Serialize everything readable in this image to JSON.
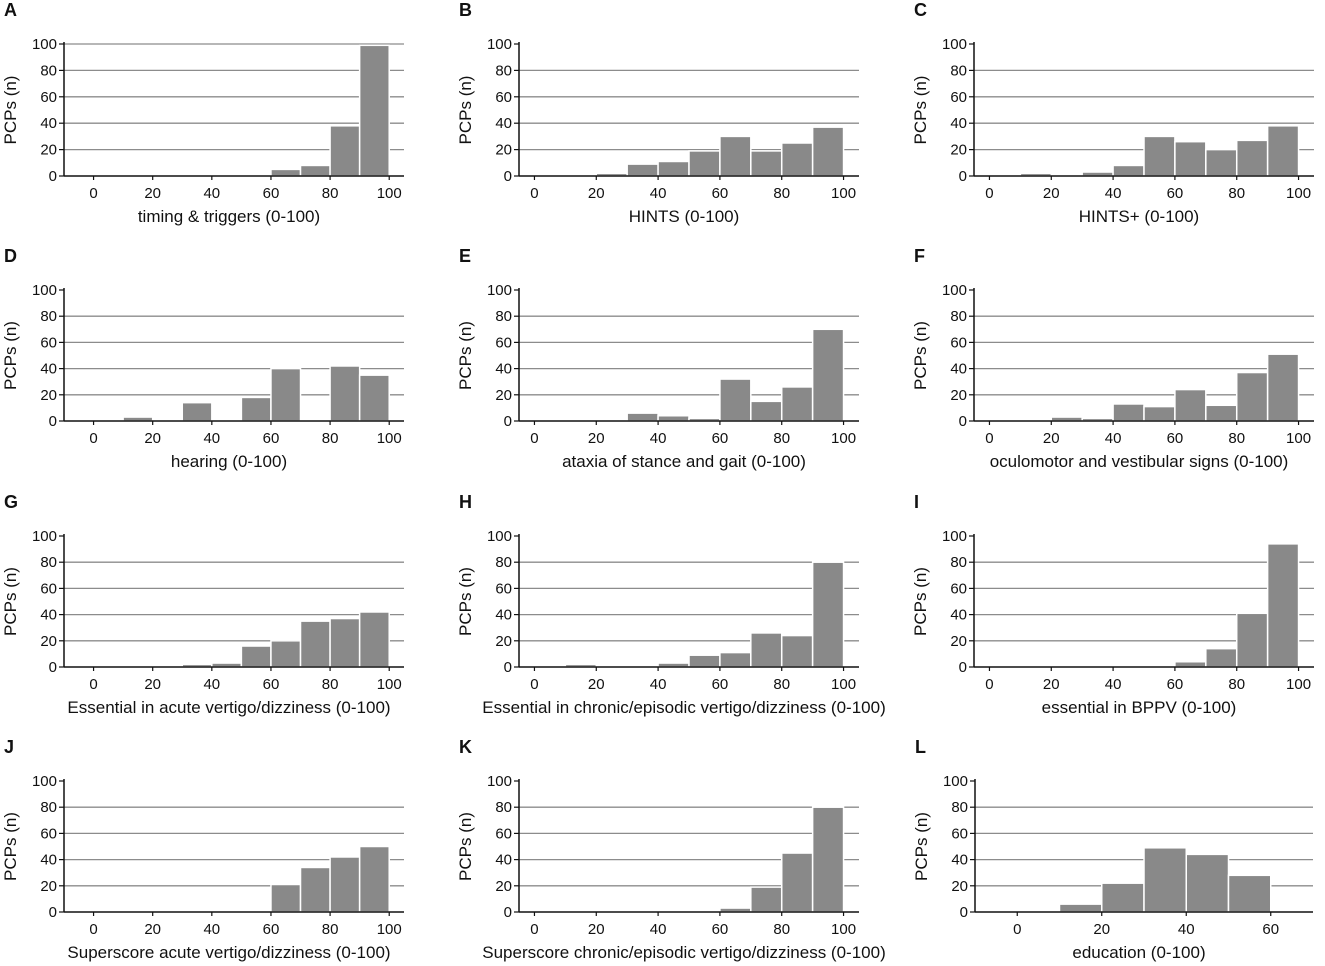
{
  "colors": {
    "bar": "#898989",
    "bar_edge": "#ffffff",
    "grid": "#8c8c8c",
    "axis": "#111111",
    "text": "#111111"
  },
  "chart_data": [
    {
      "panel": "A",
      "type": "bar",
      "xlabel": "timing & triggers (0-100)",
      "ylabel": "PCPs (n)",
      "xlim": [
        -10,
        105
      ],
      "ylim": [
        0,
        100
      ],
      "xticks": [
        0,
        20,
        40,
        60,
        80,
        100
      ],
      "yticks": [
        0,
        20,
        40,
        60,
        80,
        100
      ],
      "grid_y": [
        20,
        40,
        60,
        80,
        100
      ],
      "bins": [
        [
          0,
          10
        ],
        [
          10,
          20
        ],
        [
          20,
          30
        ],
        [
          30,
          40
        ],
        [
          40,
          50
        ],
        [
          50,
          60
        ],
        [
          60,
          70
        ],
        [
          70,
          80
        ],
        [
          80,
          90
        ],
        [
          90,
          100
        ]
      ],
      "values": [
        0,
        0,
        0,
        0,
        0,
        0,
        5,
        8,
        38,
        99
      ]
    },
    {
      "panel": "B",
      "type": "bar",
      "xlabel": "HINTS (0-100)",
      "ylabel": "PCPs (n)",
      "xlim": [
        -5,
        105
      ],
      "ylim": [
        0,
        100
      ],
      "xticks": [
        0,
        20,
        40,
        60,
        80,
        100
      ],
      "yticks": [
        0,
        20,
        40,
        60,
        80,
        100
      ],
      "grid_y": [
        20,
        40,
        60,
        80
      ],
      "bins": [
        [
          0,
          10
        ],
        [
          10,
          20
        ],
        [
          20,
          30
        ],
        [
          30,
          40
        ],
        [
          40,
          50
        ],
        [
          50,
          60
        ],
        [
          60,
          70
        ],
        [
          70,
          80
        ],
        [
          80,
          90
        ],
        [
          90,
          100
        ]
      ],
      "values": [
        1,
        1,
        2,
        9,
        11,
        19,
        30,
        19,
        25,
        37
      ]
    },
    {
      "panel": "C",
      "type": "bar",
      "xlabel": "HINTS+ (0-100)",
      "ylabel": "PCPs (n)",
      "xlim": [
        -5,
        105
      ],
      "ylim": [
        0,
        100
      ],
      "xticks": [
        0,
        20,
        40,
        60,
        80,
        100
      ],
      "yticks": [
        0,
        20,
        40,
        60,
        80,
        100
      ],
      "grid_y": [
        20,
        40,
        60,
        80
      ],
      "bins": [
        [
          0,
          10
        ],
        [
          10,
          20
        ],
        [
          20,
          30
        ],
        [
          30,
          40
        ],
        [
          40,
          50
        ],
        [
          50,
          60
        ],
        [
          60,
          70
        ],
        [
          70,
          80
        ],
        [
          80,
          90
        ],
        [
          90,
          100
        ]
      ],
      "values": [
        0,
        2,
        0,
        3,
        8,
        30,
        26,
        20,
        27,
        38
      ]
    },
    {
      "panel": "D",
      "type": "bar",
      "xlabel": "hearing (0-100)",
      "ylabel": "PCPs (n)",
      "xlim": [
        -10,
        105
      ],
      "ylim": [
        0,
        100
      ],
      "xticks": [
        0,
        20,
        40,
        60,
        80,
        100
      ],
      "yticks": [
        0,
        20,
        40,
        60,
        80,
        100
      ],
      "grid_y": [
        20,
        40,
        60,
        80
      ],
      "bins": [
        [
          0,
          10
        ],
        [
          10,
          20
        ],
        [
          20,
          30
        ],
        [
          30,
          40
        ],
        [
          40,
          50
        ],
        [
          50,
          60
        ],
        [
          60,
          70
        ],
        [
          70,
          80
        ],
        [
          80,
          90
        ],
        [
          90,
          100
        ]
      ],
      "values": [
        1,
        3,
        0,
        14,
        0,
        18,
        40,
        0,
        42,
        35
      ]
    },
    {
      "panel": "E",
      "type": "bar",
      "xlabel": "ataxia of stance and gait (0-100)",
      "ylabel": "PCPs (n)",
      "xlim": [
        -5,
        105
      ],
      "ylim": [
        0,
        100
      ],
      "xticks": [
        0,
        20,
        40,
        60,
        80,
        100
      ],
      "yticks": [
        0,
        20,
        40,
        60,
        80,
        100
      ],
      "grid_y": [
        20,
        40,
        60,
        80
      ],
      "bins": [
        [
          0,
          10
        ],
        [
          10,
          20
        ],
        [
          20,
          30
        ],
        [
          30,
          40
        ],
        [
          40,
          50
        ],
        [
          50,
          60
        ],
        [
          60,
          70
        ],
        [
          70,
          80
        ],
        [
          80,
          90
        ],
        [
          90,
          100
        ]
      ],
      "values": [
        0,
        0,
        0,
        6,
        4,
        2,
        32,
        15,
        26,
        70
      ]
    },
    {
      "panel": "F",
      "type": "bar",
      "xlabel": "oculomotor and vestibular signs (0-100)",
      "ylabel": "PCPs (n)",
      "xlim": [
        -5,
        105
      ],
      "ylim": [
        0,
        100
      ],
      "xticks": [
        0,
        20,
        40,
        60,
        80,
        100
      ],
      "yticks": [
        0,
        20,
        40,
        60,
        80,
        100
      ],
      "grid_y": [
        20,
        40,
        60,
        80
      ],
      "bins": [
        [
          0,
          10
        ],
        [
          10,
          20
        ],
        [
          20,
          30
        ],
        [
          30,
          40
        ],
        [
          40,
          50
        ],
        [
          50,
          60
        ],
        [
          60,
          70
        ],
        [
          70,
          80
        ],
        [
          80,
          90
        ],
        [
          90,
          100
        ]
      ],
      "values": [
        1,
        0,
        3,
        2,
        13,
        11,
        24,
        12,
        37,
        51
      ]
    },
    {
      "panel": "G",
      "type": "bar",
      "xlabel": "Essential in acute vertigo/dizziness (0-100)",
      "ylabel": "PCPs (n)",
      "xlim": [
        -10,
        105
      ],
      "ylim": [
        0,
        100
      ],
      "xticks": [
        0,
        20,
        40,
        60,
        80,
        100
      ],
      "yticks": [
        0,
        20,
        40,
        60,
        80,
        100
      ],
      "grid_y": [
        20,
        40,
        60,
        80
      ],
      "bins": [
        [
          0,
          10
        ],
        [
          10,
          20
        ],
        [
          20,
          30
        ],
        [
          30,
          40
        ],
        [
          40,
          50
        ],
        [
          50,
          60
        ],
        [
          60,
          70
        ],
        [
          70,
          80
        ],
        [
          80,
          90
        ],
        [
          90,
          100
        ]
      ],
      "values": [
        0,
        1,
        0,
        2,
        3,
        16,
        20,
        35,
        37,
        42
      ]
    },
    {
      "panel": "H",
      "type": "bar",
      "xlabel": "Essential in chronic/episodic vertigo/dizziness (0-100)",
      "ylabel": "PCPs (n)",
      "xlim": [
        -5,
        105
      ],
      "ylim": [
        0,
        100
      ],
      "xticks": [
        0,
        20,
        40,
        60,
        80,
        100
      ],
      "yticks": [
        0,
        20,
        40,
        60,
        80,
        100
      ],
      "grid_y": [
        20,
        40,
        60,
        80
      ],
      "bins": [
        [
          0,
          10
        ],
        [
          10,
          20
        ],
        [
          20,
          30
        ],
        [
          30,
          40
        ],
        [
          40,
          50
        ],
        [
          50,
          60
        ],
        [
          60,
          70
        ],
        [
          70,
          80
        ],
        [
          80,
          90
        ],
        [
          90,
          100
        ]
      ],
      "values": [
        0,
        2,
        0,
        0,
        3,
        9,
        11,
        26,
        24,
        80
      ]
    },
    {
      "panel": "I",
      "type": "bar",
      "xlabel": "essential in BPPV (0-100)",
      "ylabel": "PCPs (n)",
      "xlim": [
        -5,
        105
      ],
      "ylim": [
        0,
        100
      ],
      "xticks": [
        0,
        20,
        40,
        60,
        80,
        100
      ],
      "yticks": [
        0,
        20,
        40,
        60,
        80,
        100
      ],
      "grid_y": [
        20,
        40,
        60,
        80
      ],
      "bins": [
        [
          0,
          10
        ],
        [
          10,
          20
        ],
        [
          20,
          30
        ],
        [
          30,
          40
        ],
        [
          40,
          50
        ],
        [
          50,
          60
        ],
        [
          60,
          70
        ],
        [
          70,
          80
        ],
        [
          80,
          90
        ],
        [
          90,
          100
        ]
      ],
      "values": [
        0,
        0,
        0,
        0,
        0,
        0,
        4,
        14,
        41,
        94
      ]
    },
    {
      "panel": "J",
      "type": "bar",
      "xlabel": "Superscore acute vertigo/dizziness (0-100)",
      "ylabel": "PCPs (n)",
      "xlim": [
        -10,
        105
      ],
      "ylim": [
        0,
        100
      ],
      "xticks": [
        0,
        20,
        40,
        60,
        80,
        100
      ],
      "yticks": [
        0,
        20,
        40,
        60,
        80,
        100
      ],
      "grid_y": [
        20,
        40,
        60,
        80
      ],
      "bins": [
        [
          0,
          10
        ],
        [
          10,
          20
        ],
        [
          20,
          30
        ],
        [
          30,
          40
        ],
        [
          40,
          50
        ],
        [
          50,
          60
        ],
        [
          60,
          70
        ],
        [
          70,
          80
        ],
        [
          80,
          90
        ],
        [
          90,
          100
        ]
      ],
      "values": [
        0,
        0,
        0,
        0,
        1,
        0,
        21,
        34,
        42,
        50
      ]
    },
    {
      "panel": "K",
      "type": "bar",
      "xlabel": "Superscore chronic/episodic vertigo/dizziness (0-100)",
      "ylabel": "PCPs (n)",
      "xlim": [
        -5,
        105
      ],
      "ylim": [
        0,
        100
      ],
      "xticks": [
        0,
        20,
        40,
        60,
        80,
        100
      ],
      "yticks": [
        0,
        20,
        40,
        60,
        80,
        100
      ],
      "grid_y": [
        20,
        40,
        60,
        80
      ],
      "bins": [
        [
          0,
          10
        ],
        [
          10,
          20
        ],
        [
          20,
          30
        ],
        [
          30,
          40
        ],
        [
          40,
          50
        ],
        [
          50,
          60
        ],
        [
          60,
          70
        ],
        [
          70,
          80
        ],
        [
          80,
          90
        ],
        [
          90,
          100
        ]
      ],
      "values": [
        0,
        0,
        0,
        0,
        0,
        0,
        3,
        19,
        45,
        80
      ]
    },
    {
      "panel": "L",
      "type": "bar",
      "xlabel": "education (0-100)",
      "ylabel": "PCPs (n)",
      "xlim": [
        -10,
        70
      ],
      "ylim": [
        0,
        100
      ],
      "xticks": [
        0,
        20,
        40,
        60
      ],
      "yticks": [
        0,
        20,
        40,
        60,
        80,
        100
      ],
      "grid_y": [
        20,
        40,
        60,
        80
      ],
      "bins": [
        [
          0,
          10
        ],
        [
          10,
          20
        ],
        [
          20,
          30
        ],
        [
          30,
          40
        ],
        [
          40,
          50
        ],
        [
          50,
          60
        ]
      ],
      "values": [
        0,
        6,
        22,
        49,
        44,
        28
      ]
    }
  ]
}
